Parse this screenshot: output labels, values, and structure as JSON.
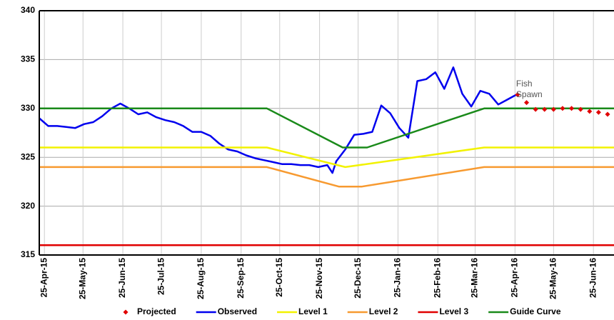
{
  "chart_data": {
    "type": "line",
    "xlim": [
      "2015-04-21",
      "2016-07-11"
    ],
    "ylim": [
      315,
      340
    ],
    "yticks": [
      315,
      320,
      325,
      330,
      335,
      340
    ],
    "xticks": [
      {
        "value": "2015-04-25",
        "label": "25-Apr-15"
      },
      {
        "value": "2015-05-25",
        "label": "25-May-15"
      },
      {
        "value": "2015-06-25",
        "label": "25-Jun-15"
      },
      {
        "value": "2015-07-25",
        "label": "25-Jul-15"
      },
      {
        "value": "2015-08-25",
        "label": "25-Aug-15"
      },
      {
        "value": "2015-09-25",
        "label": "25-Sep-15"
      },
      {
        "value": "2015-10-25",
        "label": "25-Oct-15"
      },
      {
        "value": "2015-11-25",
        "label": "25-Nov-15"
      },
      {
        "value": "2015-12-25",
        "label": "25-Dec-15"
      },
      {
        "value": "2016-01-25",
        "label": "25-Jan-16"
      },
      {
        "value": "2016-02-25",
        "label": "25-Feb-16"
      },
      {
        "value": "2016-03-25",
        "label": "25-Mar-16"
      },
      {
        "value": "2016-04-25",
        "label": "25-Apr-16"
      },
      {
        "value": "2016-05-25",
        "label": "25-May-16"
      },
      {
        "value": "2016-06-25",
        "label": "25-Jun-16"
      }
    ],
    "grid": true,
    "annotations": [
      {
        "text": "Fish",
        "x": "2016-04-27",
        "y": 332.5
      },
      {
        "text": "Spawn",
        "x": "2016-04-27",
        "y": 331.4
      }
    ],
    "series": [
      {
        "name": "Projected",
        "color": "#e00000",
        "mode": "markers",
        "x": [
          "2016-04-27",
          "2016-05-04",
          "2016-05-11",
          "2016-05-18",
          "2016-05-25",
          "2016-06-01",
          "2016-06-08",
          "2016-06-15",
          "2016-06-22",
          "2016-06-29",
          "2016-07-06"
        ],
        "values": [
          331.4,
          330.6,
          329.9,
          329.9,
          329.9,
          330,
          330,
          329.9,
          329.7,
          329.6,
          329.4
        ]
      },
      {
        "name": "Observed",
        "color": "#0000ee",
        "mode": "line",
        "x": [
          "2015-04-21",
          "2015-04-28",
          "2015-05-05",
          "2015-05-12",
          "2015-05-19",
          "2015-05-26",
          "2015-06-02",
          "2015-06-09",
          "2015-06-16",
          "2015-06-23",
          "2015-06-30",
          "2015-07-07",
          "2015-07-14",
          "2015-07-21",
          "2015-07-28",
          "2015-08-04",
          "2015-08-11",
          "2015-08-18",
          "2015-08-25",
          "2015-09-01",
          "2015-09-08",
          "2015-09-15",
          "2015-09-22",
          "2015-09-29",
          "2015-10-06",
          "2015-10-13",
          "2015-10-20",
          "2015-10-27",
          "2015-11-03",
          "2015-11-10",
          "2015-11-17",
          "2015-11-24",
          "2015-12-01",
          "2015-12-05",
          "2015-12-08",
          "2015-12-15",
          "2015-12-22",
          "2015-12-29",
          "2016-01-05",
          "2016-01-12",
          "2016-01-19",
          "2016-01-26",
          "2016-02-02",
          "2016-02-09",
          "2016-02-16",
          "2016-02-23",
          "2016-03-01",
          "2016-03-08",
          "2016-03-15",
          "2016-03-22",
          "2016-03-29",
          "2016-04-05",
          "2016-04-12",
          "2016-04-19",
          "2016-04-26"
        ],
        "values": [
          329,
          328.2,
          328.2,
          328.1,
          328,
          328.4,
          328.6,
          329.2,
          330,
          330.5,
          330,
          329.4,
          329.6,
          329.1,
          328.8,
          328.6,
          328.2,
          327.6,
          327.6,
          327.2,
          326.4,
          325.8,
          325.6,
          325.2,
          324.9,
          324.7,
          324.5,
          324.3,
          324.3,
          324.2,
          324.2,
          324,
          324.2,
          323.4,
          324.6,
          325.8,
          327.3,
          327.4,
          327.6,
          330.3,
          329.5,
          328,
          327,
          332.8,
          333,
          333.7,
          332,
          334.2,
          331.5,
          330.2,
          331.8,
          331.5,
          330.4,
          330.9,
          331.4
        ]
      },
      {
        "name": "Level 1",
        "color": "#f2f200",
        "mode": "line",
        "x": [
          "2015-04-21",
          "2015-10-15",
          "2015-12-15",
          "2016-04-01",
          "2016-07-11"
        ],
        "values": [
          326,
          326,
          324,
          326,
          326
        ]
      },
      {
        "name": "Level 2",
        "color": "#f79a30",
        "mode": "line",
        "x": [
          "2015-04-21",
          "2015-10-15",
          "2015-12-10",
          "2015-12-28",
          "2016-04-01",
          "2016-07-11"
        ],
        "values": [
          324,
          324,
          322,
          322,
          324,
          324
        ]
      },
      {
        "name": "Level 3",
        "color": "#e00000",
        "mode": "line",
        "x": [
          "2015-04-21",
          "2016-07-11"
        ],
        "values": [
          316,
          316
        ]
      },
      {
        "name": "Guide Curve",
        "color": "#1a8a1a",
        "mode": "line",
        "x": [
          "2015-04-21",
          "2015-10-15",
          "2015-12-13",
          "2016-01-01",
          "2016-04-01",
          "2016-07-11"
        ],
        "values": [
          330,
          330,
          326,
          326,
          330,
          330
        ]
      }
    ]
  }
}
